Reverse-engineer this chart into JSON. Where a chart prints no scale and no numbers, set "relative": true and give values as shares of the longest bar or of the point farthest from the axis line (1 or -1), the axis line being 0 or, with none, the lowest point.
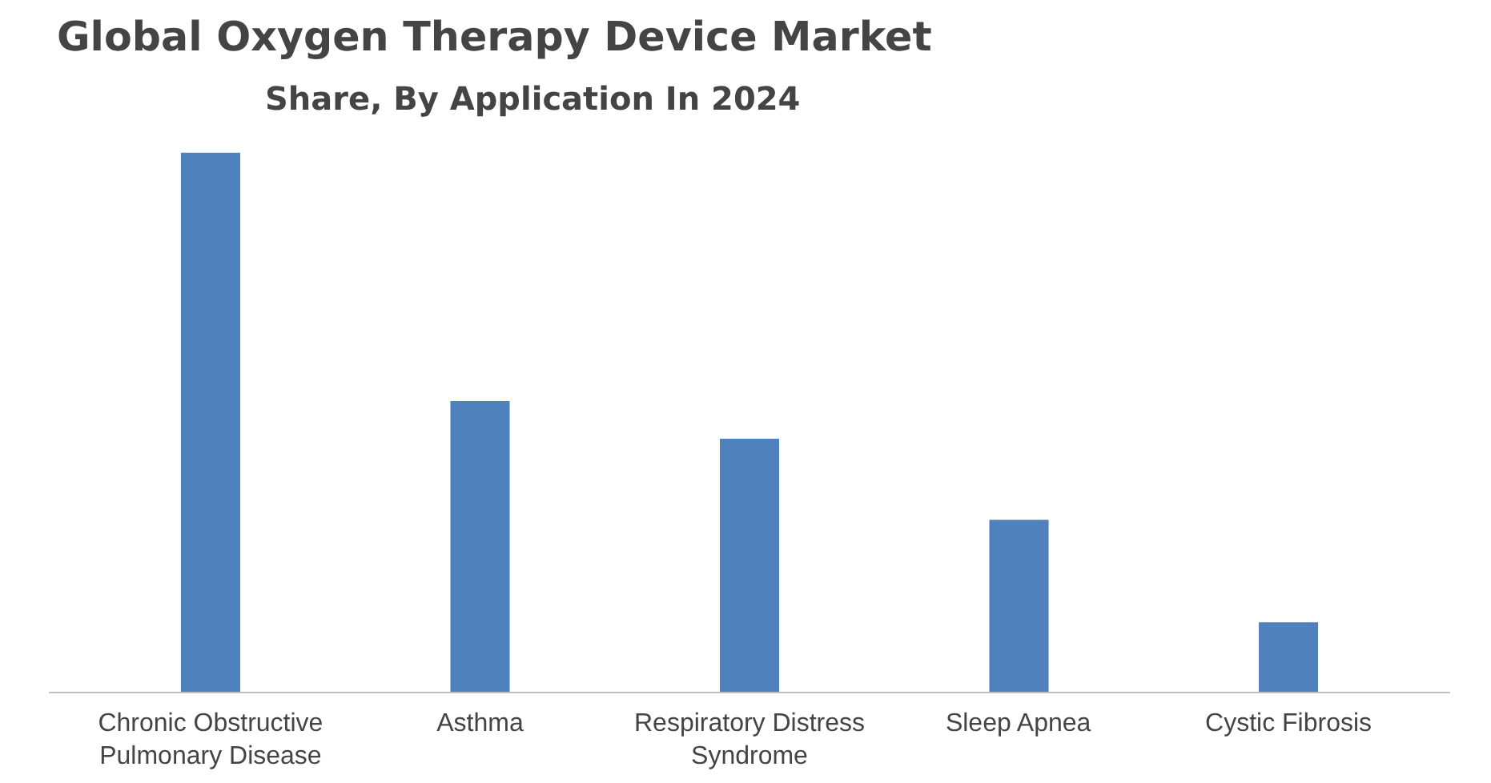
{
  "chart_data": {
    "type": "bar",
    "title": "Global Oxygen Therapy Device Market",
    "subtitle": "Share, By Application In 2024",
    "categories": [
      "Chronic Obstructive Pulmonary Disease",
      "Asthma",
      "Respiratory Distress Syndrome",
      "Sleep Apnea",
      "Cystic Fibrosis"
    ],
    "values": [
      1,
      0.54,
      0.47,
      0.32,
      0.13
    ],
    "color": "#4f81bd",
    "relative": true
  }
}
